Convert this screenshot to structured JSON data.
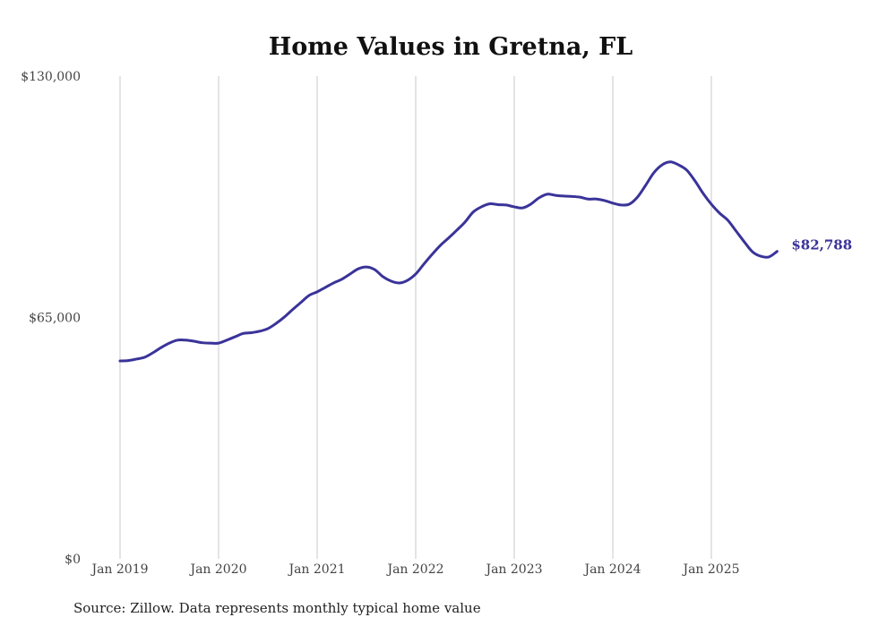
{
  "chart_data": {
    "type": "line",
    "title": "Home Values in Gretna, FL",
    "xlabel": "",
    "ylabel": "",
    "source": "Source: Zillow. Data represents monthly typical home value",
    "y_ticks": [
      0,
      65000,
      130000
    ],
    "y_tick_labels": [
      "$0",
      "$65,000",
      "$130,000"
    ],
    "ylim": [
      0,
      130000
    ],
    "x_tick_labels": [
      "Jan 2019",
      "Jan 2020",
      "Jan 2021",
      "Jan 2022",
      "Jan 2023",
      "Jan 2024",
      "Jan 2025"
    ],
    "x_start": "Jan 2019",
    "x_end": "Sep 2025",
    "grid": "vertical at x ticks",
    "line_color": "#3a3399",
    "last_value_label": "$82,788",
    "series": [
      {
        "name": "Typical home value",
        "frequency": "monthly",
        "values": [
          53300,
          53400,
          53800,
          54300,
          55500,
          56900,
          58100,
          58900,
          58900,
          58600,
          58200,
          58100,
          58100,
          58900,
          59800,
          60700,
          60900,
          61300,
          62000,
          63400,
          65100,
          67100,
          69000,
          70900,
          71900,
          73100,
          74300,
          75300,
          76700,
          78100,
          78600,
          77900,
          76000,
          74800,
          74300,
          75000,
          76700,
          79400,
          82000,
          84400,
          86400,
          88500,
          90700,
          93400,
          94800,
          95600,
          95400,
          95300,
          94800,
          94500,
          95500,
          97200,
          98200,
          97900,
          97700,
          97600,
          97400,
          96900,
          96900,
          96500,
          95800,
          95300,
          95500,
          97400,
          100600,
          104000,
          106100,
          106900,
          106100,
          104700,
          101800,
          98400,
          95500,
          93100,
          91200,
          88300,
          85400,
          82700,
          81500,
          81300,
          82788
        ]
      }
    ]
  }
}
